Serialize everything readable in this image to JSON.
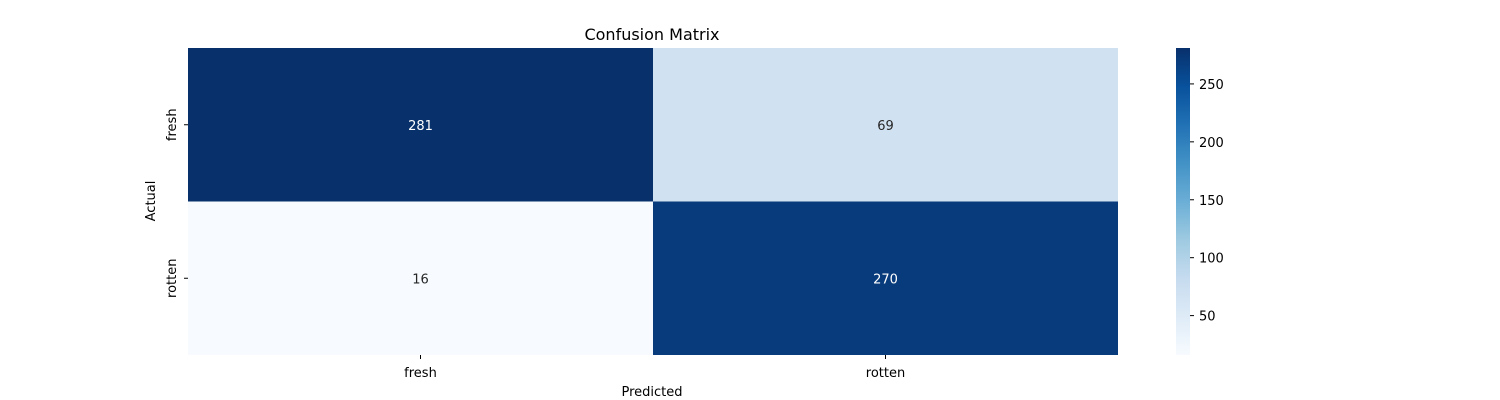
{
  "chart_data": {
    "type": "heatmap",
    "title": "Confusion Matrix",
    "xlabel": "Predicted",
    "ylabel": "Actual",
    "x_categories": [
      "fresh",
      "rotten"
    ],
    "y_categories": [
      "fresh",
      "rotten"
    ],
    "values": [
      [
        281,
        69
      ],
      [
        16,
        270
      ]
    ],
    "colormap": "Blues",
    "colorbar": {
      "min": 16,
      "max": 281,
      "ticks": [
        50,
        100,
        150,
        200,
        250
      ]
    },
    "grid": false
  }
}
